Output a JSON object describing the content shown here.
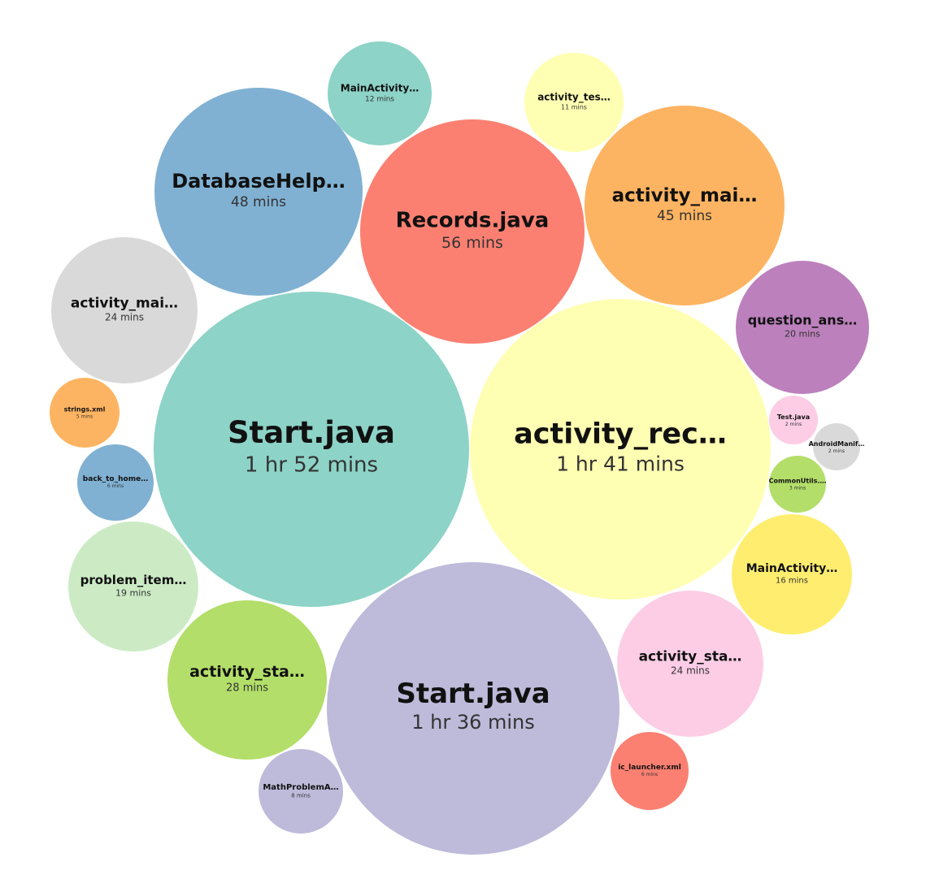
{
  "chart_data": {
    "type": "bubble",
    "series": [
      {
        "name": "Start.java",
        "duration": "1 hr 52 mins",
        "minutes": 112,
        "color": "#8dd3c7"
      },
      {
        "name": "activity_rec…",
        "duration": "1 hr 41 mins",
        "minutes": 101,
        "color": "#ffffb3"
      },
      {
        "name": "Start.java",
        "duration": "1 hr 36 mins",
        "minutes": 96,
        "color": "#bebada"
      },
      {
        "name": "Records.java",
        "duration": "56 mins",
        "minutes": 56,
        "color": "#fb8072"
      },
      {
        "name": "DatabaseHelp…",
        "duration": "48 mins",
        "minutes": 48,
        "color": "#80b1d3"
      },
      {
        "name": "activity_mai…",
        "duration": "45 mins",
        "minutes": 45,
        "color": "#fdb462"
      },
      {
        "name": "activity_sta…",
        "duration": "28 mins",
        "minutes": 28,
        "color": "#b3de69"
      },
      {
        "name": "activity_mai…",
        "duration": "24 mins",
        "minutes": 24,
        "color": "#d9d9d9"
      },
      {
        "name": "activity_sta…",
        "duration": "24 mins",
        "minutes": 24,
        "color": "#fccde5"
      },
      {
        "name": "question_ans…",
        "duration": "20 mins",
        "minutes": 20,
        "color": "#bc80bd"
      },
      {
        "name": "problem_item…",
        "duration": "19 mins",
        "minutes": 19,
        "color": "#ccebc5"
      },
      {
        "name": "MainActivity…",
        "duration": "16 mins",
        "minutes": 16,
        "color": "#ffed6f"
      },
      {
        "name": "MainActivity…",
        "duration": "12 mins",
        "minutes": 12,
        "color": "#8dd3c7"
      },
      {
        "name": "activity_tes…",
        "duration": "11 mins",
        "minutes": 11,
        "color": "#ffffb3"
      },
      {
        "name": "MathProblemA…",
        "duration": "8 mins",
        "minutes": 8,
        "color": "#bebada"
      },
      {
        "name": "ic_launcher.xml",
        "duration": "6 mins",
        "minutes": 6,
        "color": "#fb8072"
      },
      {
        "name": "back_to_home…",
        "duration": "6 mins",
        "minutes": 6,
        "color": "#80b1d3"
      },
      {
        "name": "strings.xml",
        "duration": "5 mins",
        "minutes": 5,
        "color": "#fdb462"
      },
      {
        "name": "CommonUtils.…",
        "duration": "3 mins",
        "minutes": 3,
        "color": "#b3de69"
      },
      {
        "name": "AndroidManif…",
        "duration": "2 mins",
        "minutes": 2,
        "color": "#d9d9d9"
      },
      {
        "name": "Test.java",
        "duration": "2 mins",
        "minutes": 2,
        "color": "#fccde5"
      }
    ]
  }
}
